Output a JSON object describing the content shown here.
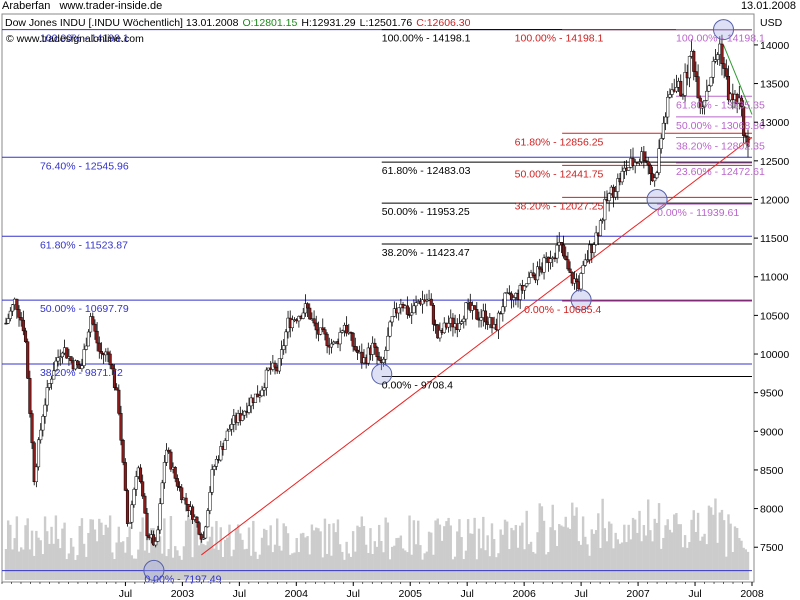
{
  "header": {
    "author": "Araberfan",
    "site": "www.trader-inside.de",
    "date": "13.01.2008"
  },
  "chart_data": {
    "type": "candlestick",
    "title": "Dow Jones INDU [.INDU  Wöchentlich] 13.01.2008",
    "ohlc": {
      "open": "O:12801.15",
      "high": "H:12931.29",
      "low": "L:12501.76",
      "close": "C:12606.30"
    },
    "watermark": "www.tradesignalonline.com",
    "y_unit": "USD",
    "ylim": [
      7050,
      14400
    ],
    "y_ticks": [
      7500,
      8000,
      8500,
      9000,
      9500,
      10000,
      10500,
      11000,
      11500,
      12000,
      12500,
      13000,
      13500,
      14000
    ],
    "x_range": [
      "2001-06",
      "2008-01"
    ],
    "x_ticks": [
      {
        "date": "2002-07",
        "label": "Jul"
      },
      {
        "date": "2003-01",
        "label": "2003"
      },
      {
        "date": "2003-07",
        "label": "Jul"
      },
      {
        "date": "2004-01",
        "label": "2004"
      },
      {
        "date": "2004-07",
        "label": "Jul"
      },
      {
        "date": "2005-01",
        "label": "2005"
      },
      {
        "date": "2005-07",
        "label": "Jul"
      },
      {
        "date": "2006-01",
        "label": "2006"
      },
      {
        "date": "2006-07",
        "label": "Jul"
      },
      {
        "date": "2007-01",
        "label": "2007"
      },
      {
        "date": "2007-07",
        "label": "Jul"
      },
      {
        "date": "2008-01",
        "label": "2008"
      }
    ],
    "price_path": [
      [
        "2001-06",
        10400
      ],
      [
        "2001-07",
        10700
      ],
      [
        "2001-08",
        10300
      ],
      [
        "2001-09",
        8400
      ],
      [
        "2001-10",
        9300
      ],
      [
        "2001-11",
        9800
      ],
      [
        "2001-12",
        10100
      ],
      [
        "2002-01",
        9900
      ],
      [
        "2002-02",
        9800
      ],
      [
        "2002-03",
        10500
      ],
      [
        "2002-04",
        10000
      ],
      [
        "2002-05",
        10000
      ],
      [
        "2002-06",
        9300
      ],
      [
        "2002-07",
        7700
      ],
      [
        "2002-08",
        8600
      ],
      [
        "2002-09",
        7700
      ],
      [
        "2002-10",
        7500
      ],
      [
        "2002-11",
        8800
      ],
      [
        "2002-12",
        8400
      ],
      [
        "2003-01",
        8100
      ],
      [
        "2003-02",
        7900
      ],
      [
        "2003-03",
        7600
      ],
      [
        "2003-04",
        8500
      ],
      [
        "2003-05",
        8800
      ],
      [
        "2003-06",
        9100
      ],
      [
        "2003-07",
        9200
      ],
      [
        "2003-08",
        9400
      ],
      [
        "2003-09",
        9500
      ],
      [
        "2003-10",
        9800
      ],
      [
        "2003-11",
        9800
      ],
      [
        "2003-12",
        10400
      ],
      [
        "2004-01",
        10500
      ],
      [
        "2004-02",
        10600
      ],
      [
        "2004-03",
        10300
      ],
      [
        "2004-04",
        10200
      ],
      [
        "2004-05",
        10100
      ],
      [
        "2004-06",
        10400
      ],
      [
        "2004-07",
        10100
      ],
      [
        "2004-08",
        9900
      ],
      [
        "2004-09",
        10100
      ],
      [
        "2004-10",
        9800
      ],
      [
        "2004-11",
        10400
      ],
      [
        "2004-12",
        10700
      ],
      [
        "2005-01",
        10500
      ],
      [
        "2005-02",
        10700
      ],
      [
        "2005-03",
        10700
      ],
      [
        "2005-04",
        10200
      ],
      [
        "2005-05",
        10400
      ],
      [
        "2005-06",
        10400
      ],
      [
        "2005-07",
        10600
      ],
      [
        "2005-08",
        10500
      ],
      [
        "2005-09",
        10500
      ],
      [
        "2005-10",
        10300
      ],
      [
        "2005-11",
        10700
      ],
      [
        "2005-12",
        10700
      ],
      [
        "2006-01",
        10850
      ],
      [
        "2006-02",
        11000
      ],
      [
        "2006-03",
        11100
      ],
      [
        "2006-04",
        11300
      ],
      [
        "2006-05",
        11400
      ],
      [
        "2006-06",
        11000
      ],
      [
        "2006-07",
        10900
      ],
      [
        "2006-08",
        11300
      ],
      [
        "2006-09",
        11600
      ],
      [
        "2006-10",
        12000
      ],
      [
        "2006-11",
        12200
      ],
      [
        "2006-12",
        12400
      ],
      [
        "2007-01",
        12500
      ],
      [
        "2007-02",
        12600
      ],
      [
        "2007-03",
        12200
      ],
      [
        "2007-04",
        13000
      ],
      [
        "2007-05",
        13500
      ],
      [
        "2007-06",
        13400
      ],
      [
        "2007-07",
        13900
      ],
      [
        "2007-08",
        13200
      ],
      [
        "2007-09",
        13600
      ],
      [
        "2007-10",
        14000
      ],
      [
        "2007-11",
        13300
      ],
      [
        "2007-12",
        13300
      ],
      [
        "2008-01",
        12600
      ]
    ],
    "circles": [
      {
        "date": "2002-10",
        "value": 7200
      },
      {
        "date": "2004-10",
        "value": 9740
      },
      {
        "date": "2006-07",
        "value": 10700
      },
      {
        "date": "2007-03",
        "value": 12000
      },
      {
        "date": "2007-10",
        "value": 14198
      }
    ],
    "fibonacci_lines": [
      {
        "label": "100.00% - 14198.1",
        "value": 14198.1,
        "color": "#3333cc",
        "x_from": "2001-06",
        "x_to": "2008-01",
        "label_at": "2001-10"
      },
      {
        "label": "76.40% - 12545.96",
        "value": 12545.96,
        "color": "#3333cc",
        "x_from": "2001-06",
        "x_to": "2008-01",
        "label_at": "2001-10"
      },
      {
        "label": "61.80% - 11523.87",
        "value": 11523.87,
        "color": "#3333cc",
        "x_from": "2001-06",
        "x_to": "2008-01",
        "label_at": "2001-10"
      },
      {
        "label": "50.00% - 10697.79",
        "value": 10697.79,
        "color": "#3333cc",
        "x_from": "2001-06",
        "x_to": "2008-01",
        "label_at": "2001-10"
      },
      {
        "label": "38.20% - 9871.72",
        "value": 9871.72,
        "color": "#3333cc",
        "x_from": "2001-06",
        "x_to": "2008-01",
        "label_at": "2001-10"
      },
      {
        "label": "0.00% - 7197.49",
        "value": 7197.49,
        "color": "#3333cc",
        "x_from": "2001-06",
        "x_to": "2008-01",
        "label_at": "2002-09"
      },
      {
        "label": "100.00% - 14198.1",
        "value": 14198.1,
        "color": "#000000",
        "x_from": "2004-10",
        "x_to": "2008-01",
        "label_at": "2004-10"
      },
      {
        "label": "61.80% - 12483.03",
        "value": 12483.03,
        "color": "#000000",
        "x_from": "2004-10",
        "x_to": "2008-01",
        "label_at": "2004-10"
      },
      {
        "label": "50.00% - 11953.25",
        "value": 11953.25,
        "color": "#000000",
        "x_from": "2004-10",
        "x_to": "2008-01",
        "label_at": "2004-10"
      },
      {
        "label": "38.20% - 11423.47",
        "value": 11423.47,
        "color": "#000000",
        "x_from": "2004-10",
        "x_to": "2008-01",
        "label_at": "2004-10"
      },
      {
        "label": "0.00% - 9708.4",
        "value": 9708.4,
        "color": "#000000",
        "x_from": "2004-10",
        "x_to": "2008-01",
        "label_at": "2004-10"
      },
      {
        "label": "100.00% - 14198.1",
        "value": 14198.1,
        "color": "#cc2222",
        "x_from": "2006-05",
        "x_to": "2008-01",
        "label_at": "2005-12"
      },
      {
        "label": "61.80% - 12856.25",
        "value": 12856.25,
        "color": "#cc2222",
        "x_from": "2006-05",
        "x_to": "2008-01",
        "label_at": "2005-12"
      },
      {
        "label": "50.00% - 12441.75",
        "value": 12441.75,
        "color": "#cc2222",
        "x_from": "2006-05",
        "x_to": "2008-01",
        "label_at": "2005-12"
      },
      {
        "label": "38.20% - 12027.25",
        "value": 12027.25,
        "color": "#cc2222",
        "x_from": "2006-05",
        "x_to": "2008-01",
        "label_at": "2005-12"
      },
      {
        "label": "0.00% - 10685.4",
        "value": 10685.4,
        "color": "#cc2222",
        "x_from": "2006-05",
        "x_to": "2008-01",
        "label_at": "2006-01"
      },
      {
        "label": "100.00% - 14198.1",
        "value": 14198.1,
        "color": "#bb66cc",
        "x_from": "2007-05",
        "x_to": "2008-01",
        "label_at": "2007-05"
      },
      {
        "label": "61.80% - 13335.35",
        "value": 13335.35,
        "color": "#bb66cc",
        "x_from": "2007-05",
        "x_to": "2008-01",
        "label_at": "2007-05"
      },
      {
        "label": "50.00% - 13068.86",
        "value": 13068.86,
        "color": "#bb66cc",
        "x_from": "2007-05",
        "x_to": "2008-01",
        "label_at": "2007-05"
      },
      {
        "label": "38.20% - 12802.35",
        "value": 12802.35,
        "color": "#bb66cc",
        "x_from": "2007-05",
        "x_to": "2008-01",
        "label_at": "2007-05"
      },
      {
        "label": "23.60% - 12472.61",
        "value": 12472.61,
        "color": "#bb66cc",
        "x_from": "2007-05",
        "x_to": "2008-01",
        "label_at": "2007-05"
      },
      {
        "label": "0.00% - 11939.61",
        "value": 11939.61,
        "color": "#bb66cc",
        "x_from": "2007-03",
        "x_to": "2008-01",
        "label_at": "2007-03"
      }
    ],
    "trendlines": [
      {
        "color": "#ee2222",
        "from": [
          "2003-03",
          7400
        ],
        "to": [
          "2008-01",
          12800
        ]
      },
      {
        "color": "#339933",
        "from": [
          "2007-10",
          14000
        ],
        "to": [
          "2008-01",
          13100
        ]
      }
    ],
    "grid": false,
    "legend": "none",
    "colors": {
      "up_candle": "#ffffff",
      "down_candle": "#8b1a1a",
      "volume": "#cccccc"
    }
  }
}
